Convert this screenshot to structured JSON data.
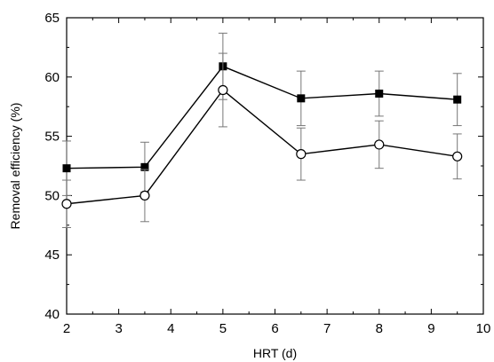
{
  "chart_data": {
    "type": "line",
    "xlabel": "HRT (d)",
    "ylabel": "Removal efficiency (%)",
    "xlim": [
      2,
      10
    ],
    "ylim": [
      40,
      65
    ],
    "xticks": [
      2,
      3,
      4,
      5,
      6,
      7,
      8,
      9,
      10
    ],
    "yticks": [
      40,
      45,
      50,
      55,
      60,
      65
    ],
    "grid": false,
    "legend": "none",
    "series": [
      {
        "marker": "filled-square",
        "color": "#000000",
        "x": [
          2,
          3.5,
          5,
          6.5,
          8,
          9.5
        ],
        "y": [
          52.3,
          52.4,
          60.9,
          58.2,
          58.6,
          58.1
        ],
        "err": [
          2.3,
          2.1,
          2.8,
          2.3,
          1.9,
          2.2
        ]
      },
      {
        "marker": "open-circle",
        "color": "#000000",
        "x": [
          2,
          3.5,
          5,
          6.5,
          8,
          9.5
        ],
        "y": [
          49.3,
          50.0,
          58.9,
          53.5,
          54.3,
          53.3
        ],
        "err": [
          2.0,
          2.2,
          3.1,
          2.2,
          2.0,
          1.9
        ]
      }
    ]
  }
}
